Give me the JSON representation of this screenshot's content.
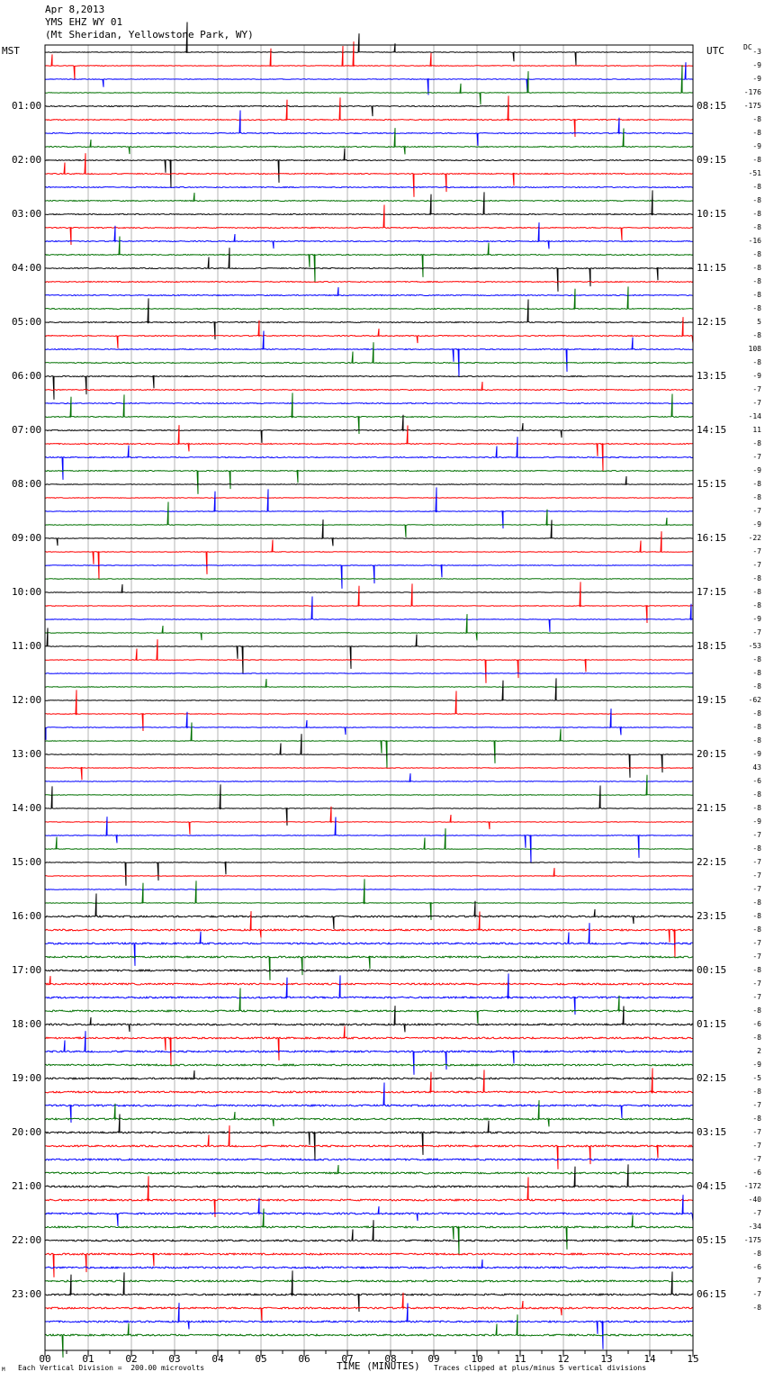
{
  "header": {
    "date": "Apr 8,2013",
    "station": "YMS EHZ WY 01",
    "location": "(Mt Sheridan, Yellowstone Park, WY)"
  },
  "left_axis_label": "MST",
  "right_axis_label": "UTC",
  "dc_label": "DC",
  "footer": {
    "scale": "Each Vertical Division =  200.00 microvolts",
    "clip": "Traces clipped at plus/minus 5 vertical divisions",
    "corner_mark": "M"
  },
  "chart_data": {
    "type": "line",
    "title": "Apr 8,2013",
    "xlabel": "TIME (MINUTES)",
    "ylabel": "",
    "xlim": [
      0,
      15
    ],
    "x_ticks": [
      "00",
      "01",
      "02",
      "03",
      "04",
      "05",
      "06",
      "07",
      "08",
      "09",
      "10",
      "11",
      "12",
      "13",
      "14",
      "15"
    ],
    "trace_minutes": 15,
    "trace_count": 96,
    "trace_colors": [
      "#000000",
      "#ff0000",
      "#0000ff",
      "#007000"
    ],
    "mst_labels": [
      "01:00",
      "02:00",
      "03:00",
      "04:00",
      "05:00",
      "06:00",
      "07:00",
      "08:00",
      "09:00",
      "10:00",
      "11:00",
      "12:00",
      "13:00",
      "14:00",
      "15:00",
      "16:00",
      "17:00",
      "18:00",
      "19:00",
      "20:00",
      "21:00",
      "22:00",
      "23:00"
    ],
    "utc_labels": [
      "08:15",
      "09:15",
      "10:15",
      "11:15",
      "12:15",
      "13:15",
      "14:15",
      "15:15",
      "16:15",
      "17:15",
      "18:15",
      "19:15",
      "20:15",
      "21:15",
      "22:15",
      "23:15",
      "00:15",
      "01:15",
      "02:15",
      "03:15",
      "04:15",
      "05:15",
      "06:15"
    ],
    "dc_offsets": [
      "-3",
      "-9",
      "-9",
      "-176",
      "-175",
      "-8",
      "-8",
      "-9",
      "-8",
      "-51",
      "-8",
      "-8",
      "-8",
      "-8",
      "-16",
      "-8",
      "-8",
      "-8",
      "-8",
      "-8",
      "5",
      "-8",
      "108",
      "-8",
      "-9",
      "-7",
      "-7",
      "-14",
      "11",
      "-8",
      "-7",
      "-9",
      "-8",
      "-8",
      "-7",
      "-9",
      "-22",
      "-7",
      "-7",
      "-8",
      "-8",
      "-8",
      "-9",
      "-7",
      "-53",
      "-8",
      "-8",
      "-8",
      "-62",
      "-8",
      "-8",
      "-8",
      "-9",
      "43",
      "-6",
      "-8",
      "-8",
      "-9",
      "-7",
      "-8",
      "-7",
      "-7",
      "-7",
      "-8",
      "-8",
      "-8",
      "-7",
      "-7",
      "-8",
      "-7",
      "-7",
      "-8",
      "-6",
      "-8",
      "2",
      "-9",
      "-5",
      "-8",
      "-7",
      "-8",
      "-7",
      "-7",
      "-7",
      "-6",
      "-172",
      "-40",
      "-7",
      "-34",
      "-175",
      "-8",
      "-6",
      "7",
      "-7",
      "-8"
    ]
  }
}
